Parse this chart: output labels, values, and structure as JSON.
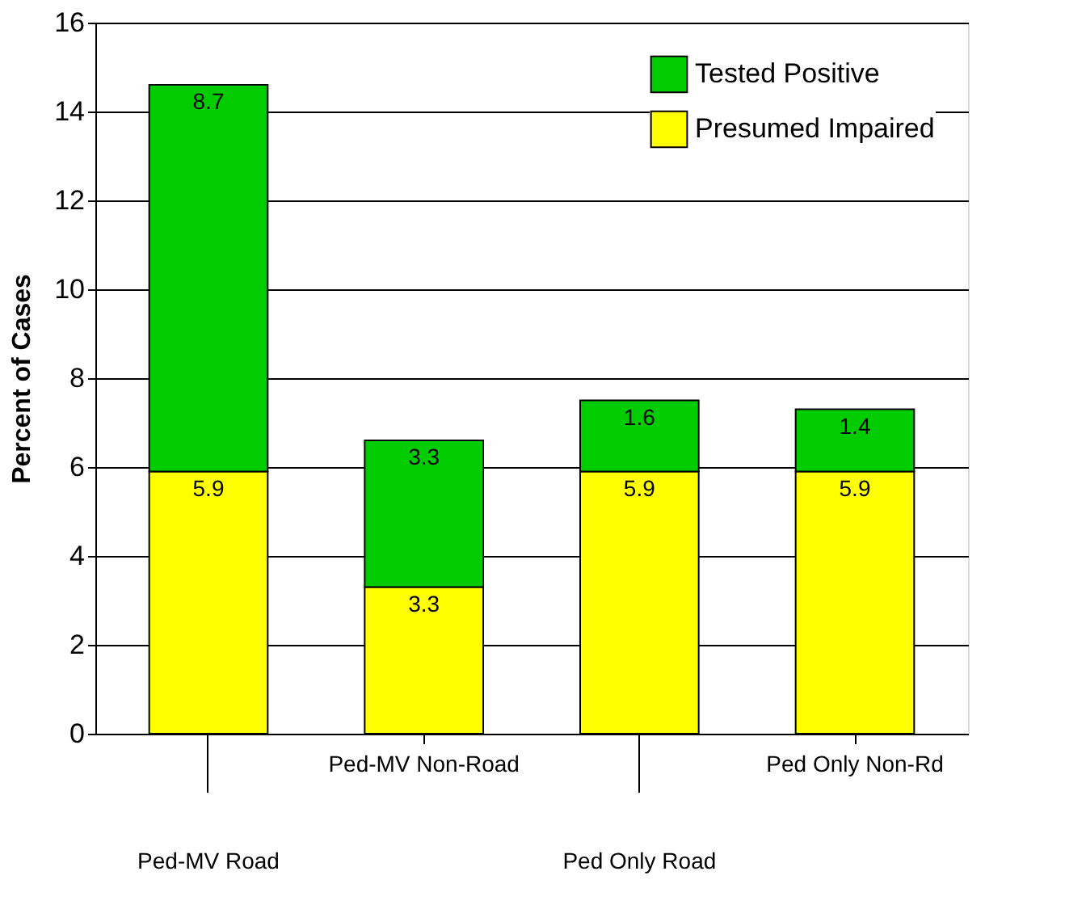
{
  "chart_data": {
    "type": "bar",
    "stacked": true,
    "ylabel": "Percent of Cases",
    "categories": [
      "Ped-MV Road",
      "Ped-MV Non-Road",
      "Ped Only Road",
      "Ped Only Non-Rd"
    ],
    "series": [
      {
        "name": "Presumed Impaired",
        "color": "#ffff00",
        "values": [
          5.9,
          3.3,
          5.9,
          5.9
        ]
      },
      {
        "name": "Tested Positive",
        "color": "#00cc00",
        "values": [
          8.7,
          3.3,
          1.6,
          1.4
        ]
      }
    ],
    "ylim": [
      0,
      16
    ],
    "yticks": [
      0,
      2,
      4,
      6,
      8,
      10,
      12,
      14,
      16
    ],
    "grid": "y",
    "legend": "top right",
    "data_labels": true
  }
}
